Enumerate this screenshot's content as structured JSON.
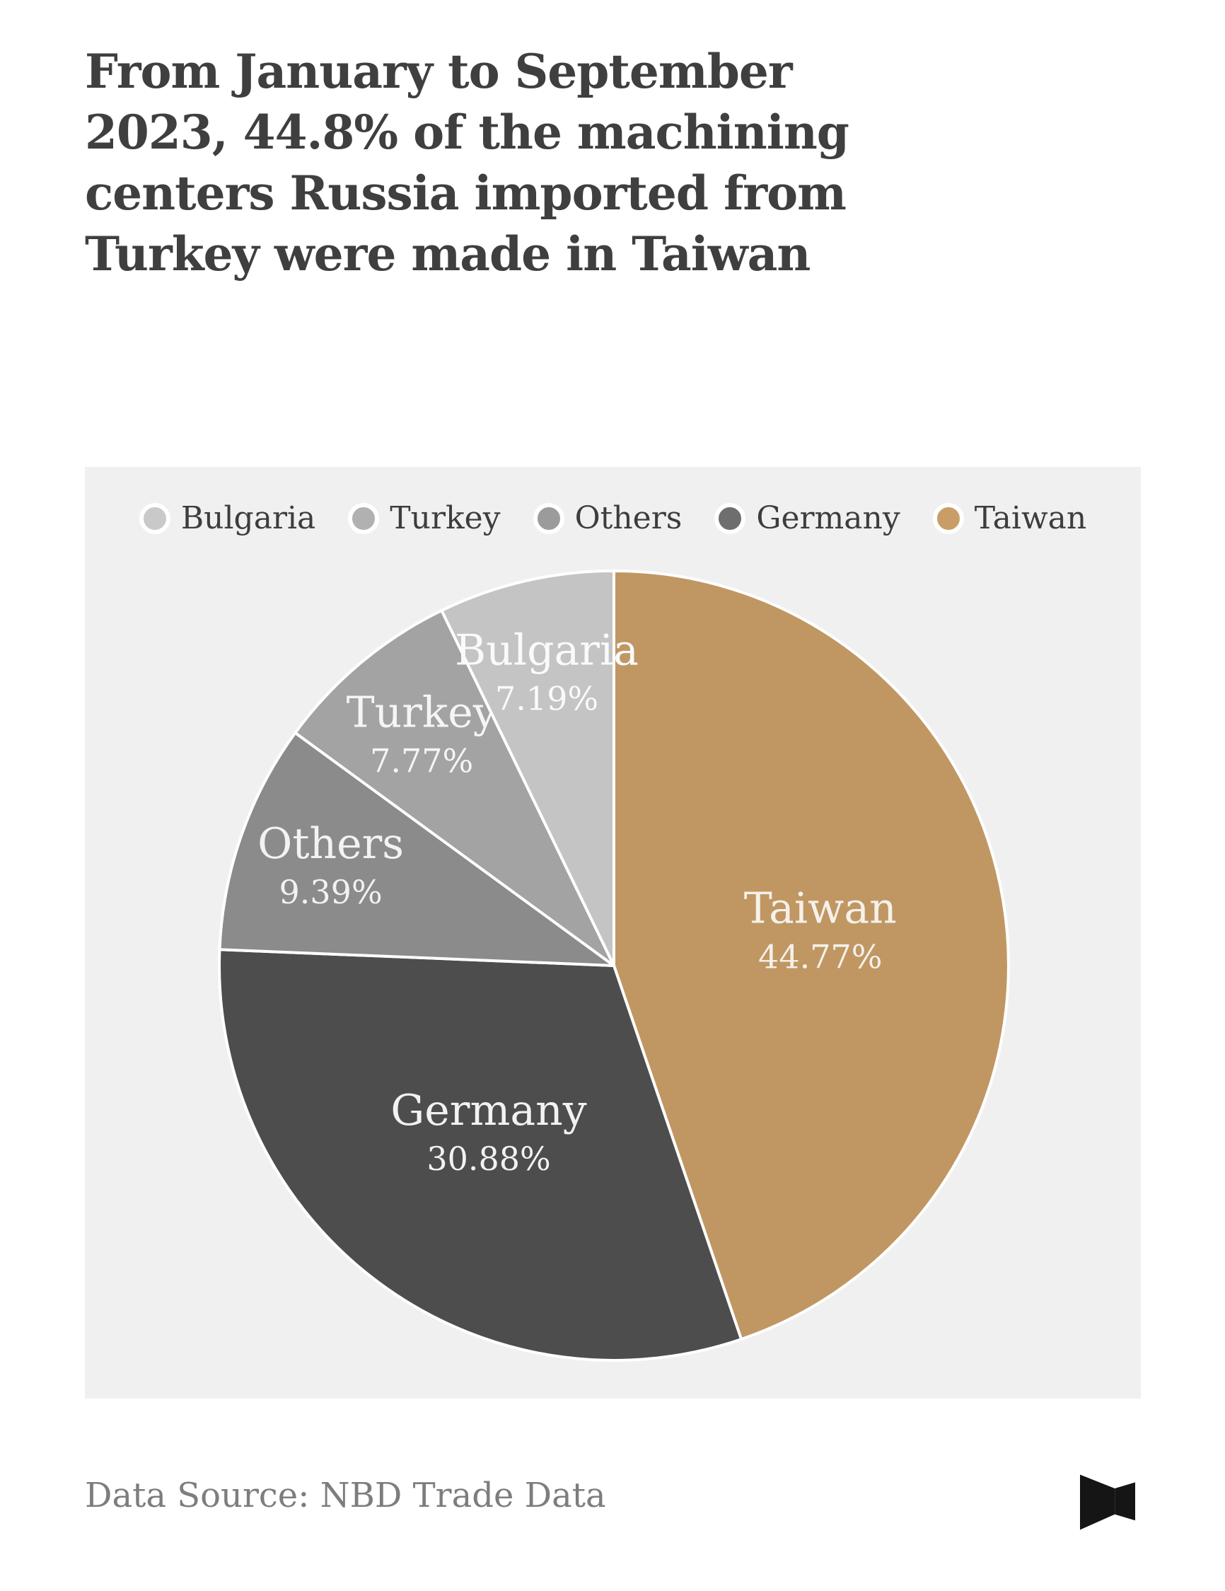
{
  "page": {
    "title_lines": [
      "From January to September",
      "2023, 44.8% of the machining",
      "centers Russia imported from",
      "Turkey were made in Taiwan"
    ],
    "footer": {
      "source_label": "Data Source: NBD Trade Data"
    },
    "logo": {
      "name": "nbd-logo"
    },
    "colors": {
      "page_bg": "#ffffff",
      "panel_bg": "#f0f0f0",
      "title_text": "#3f3f3f",
      "legend_text": "#3d3d3d",
      "footer_text": "#7d7d7d",
      "logo_fill": "#151515",
      "slice_divider": "#ffffff"
    }
  },
  "chart_data": {
    "type": "pie",
    "title": "",
    "legend_position": "top",
    "start_angle_deg": 0,
    "clockwise": true,
    "total": 100,
    "slices": [
      {
        "label": "Taiwan",
        "value": 44.77,
        "display": "44.77%",
        "color": "#c09763",
        "label_color": "#f5f1ea"
      },
      {
        "label": "Germany",
        "value": 30.88,
        "display": "30.88%",
        "color": "#4d4d4d",
        "label_color": "#f2f2f2"
      },
      {
        "label": "Others",
        "value": 9.39,
        "display": "9.39%",
        "color": "#8b8b8b",
        "label_color": "#f2f2f2"
      },
      {
        "label": "Turkey",
        "value": 7.77,
        "display": "7.77%",
        "color": "#a3a3a3",
        "label_color": "#f5f5f5"
      },
      {
        "label": "Bulgaria",
        "value": 7.19,
        "display": "7.19%",
        "color": "#c4c4c4",
        "label_color": "#fafafa"
      }
    ],
    "legend": [
      {
        "label": "Bulgaria",
        "color": "#c9c9c9"
      },
      {
        "label": "Turkey",
        "color": "#b1b1b1"
      },
      {
        "label": "Others",
        "color": "#9b9b9b"
      },
      {
        "label": "Germany",
        "color": "#6e6e6e"
      },
      {
        "label": "Taiwan",
        "color": "#c99e66"
      }
    ]
  }
}
